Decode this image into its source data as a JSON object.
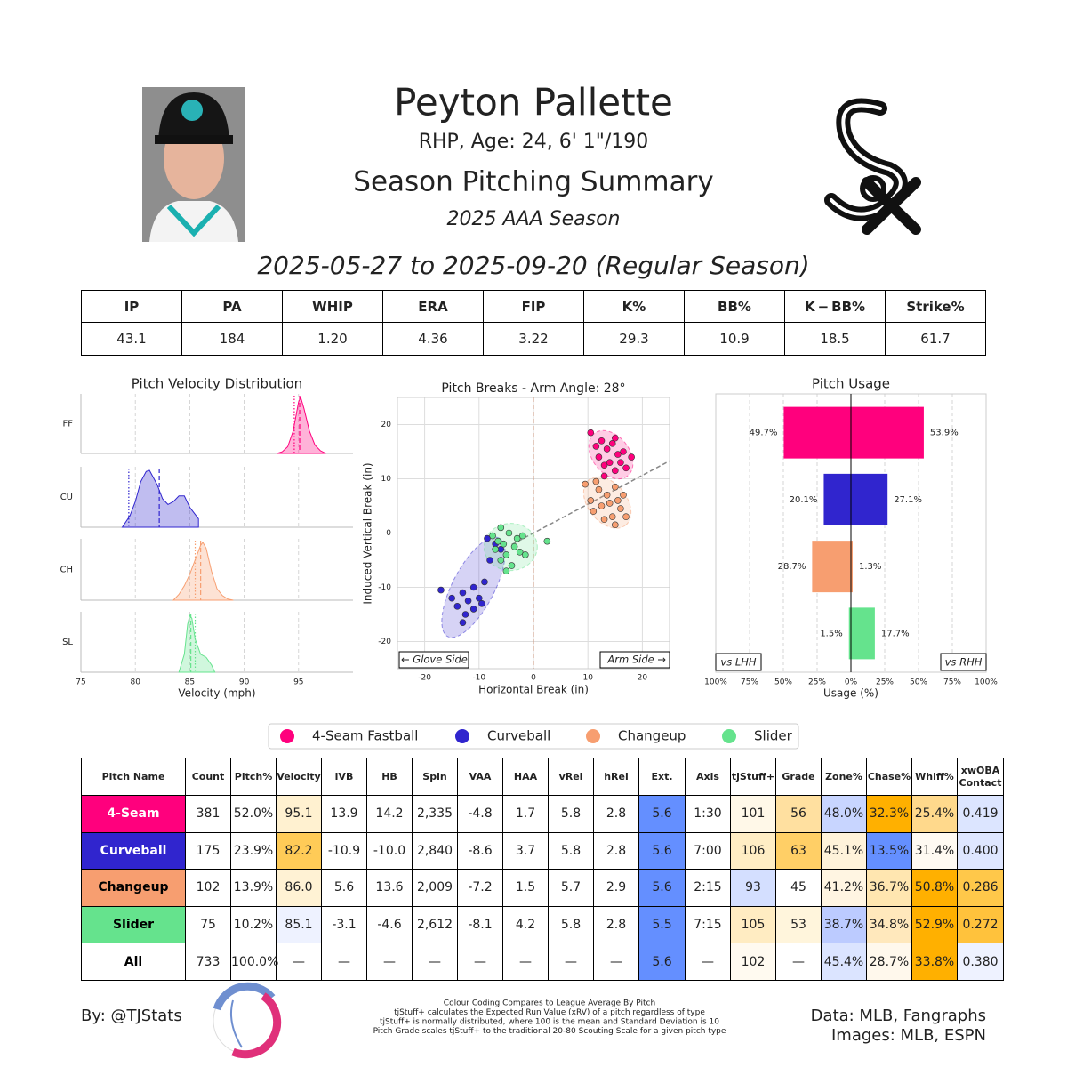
{
  "header": {
    "name": "Peyton Pallette",
    "bio": "RHP, Age: 24, 6' 1\"/190",
    "title": "Season Pitching Summary",
    "season": "2025 AAA Season",
    "date_range": "2025-05-27 to 2025-09-20 (Regular Season)"
  },
  "summary_table": {
    "columns": [
      "IP",
      "PA",
      "WHIP",
      "ERA",
      "FIP",
      "K%",
      "BB%",
      "K − BB%",
      "Strike%"
    ],
    "values": [
      "43.1",
      "184",
      "1.20",
      "4.36",
      "3.22",
      "29.3",
      "10.9",
      "18.5",
      "61.7"
    ]
  },
  "chart_data": [
    {
      "type": "density",
      "title": "Pitch Velocity Distribution",
      "xlabel": "Velocity (mph)",
      "xlim": [
        75,
        100
      ],
      "xticks": [
        75,
        80,
        85,
        90,
        95
      ],
      "grid": true,
      "series": [
        {
          "name": "FF",
          "color": "#ff007d",
          "mean": 95.1,
          "league_mean": 94.6,
          "x": [
            93,
            93.5,
            94,
            94.5,
            95,
            95.2,
            95.5,
            96,
            96.5,
            97,
            97.5
          ],
          "values": [
            0,
            0.03,
            0.12,
            0.4,
            0.92,
            1.0,
            0.8,
            0.4,
            0.15,
            0.05,
            0
          ]
        },
        {
          "name": "CU",
          "color": "#3025ce",
          "mean": 82.2,
          "league_mean": 79.4,
          "x": [
            78.8,
            79.5,
            80,
            80.5,
            81,
            81.3,
            82,
            82.5,
            83,
            83.5,
            84,
            84.5,
            85,
            85.8,
            85.8
          ],
          "values": [
            0,
            0.2,
            0.45,
            0.8,
            0.98,
            1.0,
            0.75,
            0.5,
            0.4,
            0.45,
            0.55,
            0.55,
            0.35,
            0.15,
            0
          ]
        },
        {
          "name": "CH",
          "color": "#f79e70",
          "mean": 86.0,
          "league_mean": 85.5,
          "x": [
            83.5,
            84,
            84.5,
            85,
            85.5,
            86,
            86.2,
            86.5,
            87,
            87.5,
            88,
            88.5,
            89
          ],
          "values": [
            0,
            0.1,
            0.25,
            0.45,
            0.7,
            0.95,
            1.0,
            0.9,
            0.5,
            0.2,
            0.08,
            0.02,
            0
          ]
        },
        {
          "name": "SL",
          "color": "#65e38d",
          "mean": 85.1,
          "league_mean": 85.5,
          "x": [
            84,
            84.5,
            84.8,
            85,
            85.2,
            85.5,
            86,
            86.5,
            87,
            87.3
          ],
          "values": [
            0,
            0.3,
            0.8,
            0.95,
            0.9,
            0.55,
            0.3,
            0.25,
            0.12,
            0
          ]
        }
      ]
    },
    {
      "type": "scatter",
      "title": "Pitch Breaks - Arm Angle: 28°",
      "xlabel": "Horizontal Break (in)",
      "ylabel": "Induced Vertical Break (in)",
      "arm_angle": 28,
      "xlim": [
        -25,
        25
      ],
      "ylim": [
        -25,
        25
      ],
      "xticks": [
        -20,
        -10,
        0,
        10,
        20
      ],
      "yticks": [
        -20,
        -10,
        0,
        10,
        20
      ],
      "grid": true,
      "annotations": [
        "← Glove Side",
        "Arm Side →"
      ],
      "series": [
        {
          "name": "4-Seam Fastball",
          "color": "#ff007d",
          "x": [
            10.5,
            11.5,
            12,
            12.5,
            13,
            13.5,
            14,
            14.5,
            15,
            15.5,
            16,
            16.5,
            17,
            18,
            13,
            15
          ],
          "values": [
            18.5,
            16,
            14,
            17,
            12.5,
            15.5,
            13,
            16.5,
            11.5,
            14.5,
            13,
            15,
            12,
            14,
            10.5,
            17.5
          ]
        },
        {
          "name": "Curveball",
          "color": "#3025ce",
          "x": [
            -17,
            -15,
            -14,
            -13,
            -12.5,
            -12,
            -11,
            -11,
            -10,
            -9.5,
            -9,
            -8,
            -7,
            -6,
            -8.5,
            -13
          ],
          "values": [
            -10.5,
            -12,
            -13.5,
            -11,
            -15,
            -12.5,
            -10,
            -14,
            -12,
            -13,
            -9,
            -5,
            -2,
            -3,
            -1,
            -16.5
          ]
        },
        {
          "name": "Changeup",
          "color": "#f79e70",
          "x": [
            9.5,
            10.5,
            11,
            12,
            12.5,
            13,
            13.5,
            14,
            14.5,
            15,
            15.5,
            16,
            16.5,
            17,
            15,
            11.5
          ],
          "values": [
            9,
            6,
            4,
            8,
            5,
            2.5,
            7,
            5.5,
            3,
            8.5,
            6,
            4.5,
            7,
            3,
            1.5,
            9.5
          ]
        },
        {
          "name": "Slider",
          "color": "#65e38d",
          "x": [
            -7.5,
            -7,
            -6.5,
            -6,
            -5.5,
            -5,
            -4.5,
            -4,
            -3.5,
            -3,
            -2.5,
            -2,
            -1.5,
            -6,
            2.5,
            -5
          ],
          "values": [
            -0.5,
            -3,
            -1.5,
            -5,
            -2,
            -4,
            0,
            -6,
            -2.5,
            -1,
            -3.5,
            -0.5,
            -4,
            1,
            -1.5,
            -7
          ]
        }
      ]
    },
    {
      "type": "diverging_bar",
      "title": "Pitch Usage",
      "xlabel": "Usage (%)",
      "xlim": [
        -100,
        100
      ],
      "grid": true,
      "xticks": [
        {
          "value": -100,
          "label": "100%"
        },
        {
          "value": -75,
          "label": "75%"
        },
        {
          "value": -50,
          "label": "50%"
        },
        {
          "value": -25,
          "label": "25%"
        },
        {
          "value": 0,
          "label": "0%"
        },
        {
          "value": 25,
          "label": "25%"
        },
        {
          "value": 50,
          "label": "50%"
        },
        {
          "value": 75,
          "label": "75%"
        },
        {
          "value": 100,
          "label": "100%"
        }
      ],
      "colors": [
        "#ff007d",
        "#3025ce",
        "#f79e70",
        "#65e38d"
      ],
      "series": [
        {
          "name": "vs LHH",
          "side": "left",
          "values": [
            49.7,
            20.1,
            28.7,
            1.5
          ],
          "value_labels": [
            "49.7%",
            "20.1%",
            "28.7%",
            "1.5%"
          ]
        },
        {
          "name": "vs RHH",
          "side": "right",
          "values": [
            53.9,
            27.1,
            1.3,
            17.7
          ],
          "value_labels": [
            "53.9%",
            "27.1%",
            "1.3%",
            "17.7%"
          ]
        }
      ]
    }
  ],
  "pitch_table": {
    "columns": [
      "Pitch Name",
      "Count",
      "Pitch%",
      "Velocity",
      "iVB",
      "HB",
      "Spin",
      "VAA",
      "HAA",
      "vRel",
      "hRel",
      "Ext.",
      "Axis",
      "tjStuff+",
      "Grade",
      "Zone%",
      "Chase%",
      "Whiff%",
      "xwOBA\nContact"
    ],
    "rows": [
      {
        "cells": [
          "4-Seam",
          "381",
          "52.0%",
          "95.1",
          "13.9",
          "14.2",
          "2,335",
          "-4.8",
          "1.7",
          "5.8",
          "2.8",
          "5.6",
          "1:30",
          "101",
          "56",
          "48.0%",
          "32.3%",
          "25.4%",
          "0.419"
        ],
        "colors": [
          "#ff007d",
          "#ffffff",
          "#ffffff",
          "#fff1d0",
          "#ffffff",
          "#ffffff",
          "#ffffff",
          "#ffffff",
          "#ffffff",
          "#ffffff",
          "#ffffff",
          "#648fff",
          "#ffffff",
          "#fff8e8",
          "#ffe0a0",
          "#c8d5ff",
          "#ffb000",
          "#ffd98c",
          "#dce5ff"
        ]
      },
      {
        "cells": [
          "Curveball",
          "175",
          "23.9%",
          "82.2",
          "-10.9",
          "-10.0",
          "2,840",
          "-8.6",
          "3.7",
          "5.8",
          "2.8",
          "5.6",
          "7:00",
          "106",
          "63",
          "45.1%",
          "13.5%",
          "31.4%",
          "0.400"
        ],
        "colors": [
          "#3025ce",
          "#ffffff",
          "#ffffff",
          "#ffcb57",
          "#ffffff",
          "#ffffff",
          "#ffffff",
          "#ffffff",
          "#ffffff",
          "#ffffff",
          "#ffffff",
          "#648fff",
          "#ffffff",
          "#ffedc4",
          "#ffcf66",
          "#fff3da",
          "#648fff",
          "#fffaf2",
          "#dee6ff"
        ]
      },
      {
        "cells": [
          "Changeup",
          "102",
          "13.9%",
          "86.0",
          "5.6",
          "13.6",
          "2,009",
          "-7.2",
          "1.5",
          "5.7",
          "2.9",
          "5.6",
          "2:15",
          "93",
          "45",
          "41.2%",
          "36.7%",
          "50.8%",
          "0.286"
        ],
        "colors": [
          "#f79e70",
          "#ffffff",
          "#ffffff",
          "#fff2d4",
          "#ffffff",
          "#ffffff",
          "#ffffff",
          "#ffffff",
          "#ffffff",
          "#ffffff",
          "#ffffff",
          "#648fff",
          "#ffffff",
          "#d4dfff",
          "#ffffff",
          "#fff5e2",
          "#ffe6b0",
          "#ffb000",
          "#ffc84a"
        ]
      },
      {
        "cells": [
          "Slider",
          "75",
          "10.2%",
          "85.1",
          "-3.1",
          "-4.6",
          "2,612",
          "-8.1",
          "4.2",
          "5.8",
          "2.8",
          "5.5",
          "7:15",
          "105",
          "53",
          "38.7%",
          "34.8%",
          "52.9%",
          "0.272"
        ],
        "colors": [
          "#65e38d",
          "#ffffff",
          "#ffffff",
          "#eef2ff",
          "#ffffff",
          "#ffffff",
          "#ffffff",
          "#ffffff",
          "#ffffff",
          "#ffffff",
          "#ffffff",
          "#648fff",
          "#ffffff",
          "#ffecc2",
          "#fff5dc",
          "#bccbff",
          "#ffe8bc",
          "#ffb000",
          "#ffc23c"
        ]
      },
      {
        "cells": [
          "All",
          "733",
          "100.0%",
          "—",
          "—",
          "—",
          "—",
          "—",
          "—",
          "—",
          "—",
          "5.6",
          "—",
          "102",
          "—",
          "45.4%",
          "28.7%",
          "33.8%",
          "0.380"
        ],
        "colors": [
          "#ffffff",
          "#ffffff",
          "#ffffff",
          "#ffffff",
          "#ffffff",
          "#ffffff",
          "#ffffff",
          "#ffffff",
          "#ffffff",
          "#ffffff",
          "#ffffff",
          "#648fff",
          "#ffffff",
          "#fffaf0",
          "#ffffff",
          "#dbe4ff",
          "#fff8ec",
          "#ffb000",
          "#eef2ff"
        ]
      }
    ]
  },
  "footer": {
    "author": "By: @TJStats",
    "notes": [
      "Colour Coding Compares to League Average By Pitch",
      "tjStuff+ calculates the Expected Run Value (xRV) of a pitch regardless of type",
      "tjStuff+ is normally distributed, where 100 is the mean and Standard Deviation is 10",
      "Pitch Grade scales tjStuff+ to the traditional 20-80 Scouting Scale for a given pitch type"
    ],
    "sources": [
      "Data: MLB, Fangraphs",
      "Images: MLB, ESPN"
    ]
  }
}
